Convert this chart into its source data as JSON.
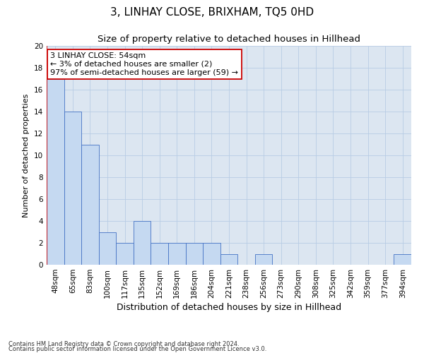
{
  "title": "3, LINHAY CLOSE, BRIXHAM, TQ5 0HD",
  "subtitle": "Size of property relative to detached houses in Hillhead",
  "xlabel": "Distribution of detached houses by size in Hillhead",
  "ylabel": "Number of detached properties",
  "categories": [
    "48sqm",
    "65sqm",
    "83sqm",
    "100sqm",
    "117sqm",
    "135sqm",
    "152sqm",
    "169sqm",
    "186sqm",
    "204sqm",
    "221sqm",
    "238sqm",
    "256sqm",
    "273sqm",
    "290sqm",
    "308sqm",
    "325sqm",
    "342sqm",
    "359sqm",
    "377sqm",
    "394sqm"
  ],
  "values": [
    17,
    14,
    11,
    3,
    2,
    4,
    2,
    2,
    2,
    2,
    1,
    0,
    1,
    0,
    0,
    0,
    0,
    0,
    0,
    0,
    1
  ],
  "bar_color": "#c5d9f1",
  "bar_edge_color": "#4472c4",
  "subject_line_color": "#cc0000",
  "subject_bar_index": 0,
  "annotation_line1": "3 LINHAY CLOSE: 54sqm",
  "annotation_line2": "← 3% of detached houses are smaller (2)",
  "annotation_line3": "97% of semi-detached houses are larger (59) →",
  "annotation_box_color": "#ffffff",
  "annotation_box_edge": "#cc0000",
  "footer_line1": "Contains HM Land Registry data © Crown copyright and database right 2024.",
  "footer_line2": "Contains public sector information licensed under the Open Government Licence v3.0.",
  "ylim": [
    0,
    20
  ],
  "yticks": [
    0,
    2,
    4,
    6,
    8,
    10,
    12,
    14,
    16,
    18,
    20
  ],
  "grid_color": "#b8cce4",
  "background_color": "#dce6f1",
  "title_fontsize": 11,
  "subtitle_fontsize": 9.5,
  "tick_fontsize": 7.5,
  "ylabel_fontsize": 8,
  "xlabel_fontsize": 9,
  "annotation_fontsize": 8,
  "footer_fontsize": 6
}
